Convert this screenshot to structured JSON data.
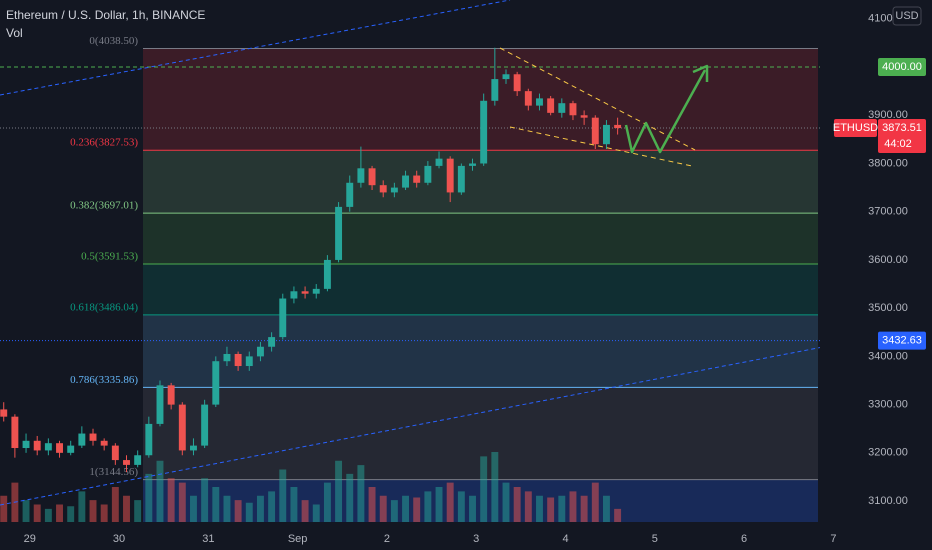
{
  "chart_data": {
    "type": "candlestick",
    "title": "Ethereum / U.S. Dollar, 1h, BINANCE",
    "volume_label": "Vol",
    "currency": "USD",
    "symbol": "ETHUSD",
    "last_price": 3873.51,
    "countdown": "44:02",
    "alert_line": {
      "value": 4000,
      "label": "4000.00"
    },
    "marker_line": 3432.63,
    "up_color": "#26a69a",
    "down_color": "#ef5350",
    "xlim": [
      -8,
      242.5
    ],
    "ylim": [
      3040,
      4139
    ],
    "xticks": [
      {
        "value": 0,
        "label": "29"
      },
      {
        "value": 24,
        "label": "30"
      },
      {
        "value": 48,
        "label": "31"
      },
      {
        "value": 72,
        "label": "Sep"
      },
      {
        "value": 96,
        "label": "2"
      },
      {
        "value": 120,
        "label": "3"
      },
      {
        "value": 144,
        "label": "4"
      },
      {
        "value": 168,
        "label": "5"
      },
      {
        "value": 192,
        "label": "6"
      },
      {
        "value": 216,
        "label": "7"
      }
    ],
    "yticks": [
      {
        "value": 3100,
        "label": "3100.00"
      },
      {
        "value": 3200,
        "label": "3200.00"
      },
      {
        "value": 3300,
        "label": "3300.00"
      },
      {
        "value": 3400,
        "label": "3400.00"
      },
      {
        "value": 3500,
        "label": "3500.00"
      },
      {
        "value": 3600,
        "label": "3600.00"
      },
      {
        "value": 3700,
        "label": "3700.00"
      },
      {
        "value": 3800,
        "label": "3800.00"
      },
      {
        "value": 3900,
        "label": "3900.00"
      },
      {
        "value": 4100,
        "label": "4100.00"
      }
    ],
    "grid": true,
    "fib_levels": [
      {
        "label": "0(4038.50)",
        "value": 4038.5,
        "color": "#787b86"
      },
      {
        "label": "0.236(3827.53)",
        "value": 3827.53,
        "color": "#f23645"
      },
      {
        "label": "0.382(3697.01)",
        "value": 3697.01,
        "color": "#81c784"
      },
      {
        "label": "0.5(3591.53)",
        "value": 3591.53,
        "color": "#4caf50"
      },
      {
        "label": "0.618(3486.04)",
        "value": 3486.04,
        "color": "#089981"
      },
      {
        "label": "0.786(3335.86)",
        "value": 3335.86,
        "color": "#64b5f6"
      },
      {
        "label": "1(3144.56)",
        "value": 3144.56,
        "color": "#787b86"
      }
    ],
    "x": [
      -7,
      -4,
      -1,
      2,
      5,
      8,
      11,
      14,
      17,
      20,
      23,
      26,
      29,
      32,
      35,
      38,
      41,
      44,
      47,
      50,
      53,
      56,
      59,
      62,
      65,
      68,
      71,
      74,
      77,
      80,
      83,
      86,
      89,
      92,
      95,
      98,
      101,
      104,
      107,
      110,
      113,
      116,
      119,
      122,
      125,
      128,
      131,
      134,
      137,
      140,
      143,
      146,
      149,
      152,
      155,
      158
    ],
    "open": [
      3290,
      3275,
      3210,
      3225,
      3205,
      3220,
      3200,
      3215,
      3240,
      3225,
      3215,
      3185,
      3175,
      3195,
      3260,
      3340,
      3300,
      3205,
      3215,
      3300,
      3390,
      3405,
      3380,
      3400,
      3420,
      3440,
      3520,
      3535,
      3530,
      3540,
      3600,
      3710,
      3760,
      3790,
      3755,
      3740,
      3750,
      3775,
      3760,
      3795,
      3810,
      3740,
      3795,
      3800,
      3930,
      3975,
      3985,
      3950,
      3920,
      3935,
      3905,
      3925,
      3900,
      3895,
      3840,
      3880
    ],
    "high": [
      3305,
      3280,
      3240,
      3235,
      3230,
      3225,
      3225,
      3255,
      3250,
      3230,
      3220,
      3195,
      3205,
      3275,
      3350,
      3345,
      3305,
      3230,
      3310,
      3400,
      3420,
      3410,
      3410,
      3430,
      3450,
      3530,
      3545,
      3545,
      3550,
      3610,
      3720,
      3775,
      3835,
      3795,
      3765,
      3760,
      3785,
      3785,
      3805,
      3825,
      3815,
      3800,
      3810,
      3945,
      4040,
      3995,
      3990,
      3955,
      3945,
      3940,
      3935,
      3930,
      3910,
      3900,
      3890,
      3895
    ],
    "low": [
      3265,
      3190,
      3200,
      3195,
      3195,
      3190,
      3195,
      3210,
      3215,
      3205,
      3175,
      3160,
      3170,
      3190,
      3255,
      3290,
      3195,
      3195,
      3210,
      3295,
      3380,
      3370,
      3370,
      3390,
      3410,
      3435,
      3510,
      3520,
      3520,
      3535,
      3595,
      3700,
      3750,
      3745,
      3730,
      3730,
      3745,
      3750,
      3755,
      3790,
      3720,
      3735,
      3785,
      3795,
      3920,
      3965,
      3940,
      3910,
      3910,
      3900,
      3895,
      3890,
      3880,
      3830,
      3830,
      3860
    ],
    "close": [
      3275,
      3210,
      3225,
      3205,
      3220,
      3200,
      3215,
      3240,
      3225,
      3215,
      3185,
      3175,
      3195,
      3260,
      3340,
      3300,
      3205,
      3215,
      3300,
      3390,
      3405,
      3380,
      3400,
      3420,
      3440,
      3520,
      3535,
      3530,
      3540,
      3600,
      3710,
      3760,
      3790,
      3755,
      3740,
      3750,
      3775,
      3760,
      3795,
      3810,
      3740,
      3795,
      3800,
      3930,
      3975,
      3985,
      3950,
      3920,
      3935,
      3905,
      3925,
      3900,
      3895,
      3840,
      3880,
      3873.51
    ],
    "volume": [
      30,
      45,
      25,
      20,
      15,
      20,
      18,
      35,
      25,
      20,
      40,
      30,
      25,
      55,
      70,
      50,
      45,
      30,
      50,
      40,
      30,
      25,
      22,
      30,
      35,
      60,
      40,
      25,
      20,
      45,
      70,
      55,
      65,
      40,
      30,
      25,
      30,
      28,
      35,
      40,
      45,
      35,
      30,
      75,
      80,
      45,
      40,
      35,
      30,
      28,
      30,
      35,
      30,
      45,
      30,
      15
    ]
  }
}
